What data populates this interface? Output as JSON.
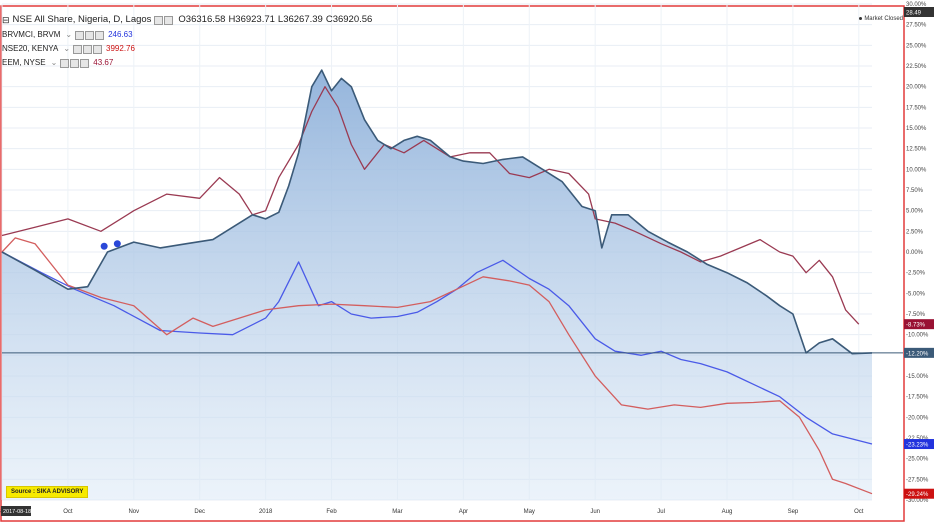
{
  "legend": {
    "main": {
      "name": "NSE All Share, Nigeria, D, Lagos",
      "open": "O36316.58",
      "high": "H36923.71",
      "low": "L36267.39",
      "close": "C36920.56"
    },
    "overlays": [
      {
        "name": "BRVMCI, BRVM",
        "value": "246.63",
        "color": "#2233dd"
      },
      {
        "name": "NSE20, KENYA",
        "value": "3992.76",
        "color": "#cc1111"
      },
      {
        "name": "EEM, NYSE",
        "value": "43.67",
        "color": "#991133"
      }
    ]
  },
  "market_status": "Market Closed",
  "source_label": "Source : SIKA ADVISORY",
  "date_label": "2017-08-18",
  "colors": {
    "main_line": "#3b5a78",
    "main_fill": "#a9c6e6",
    "brvm_line": "#4a5ae8",
    "kenya_line": "#d35e5e",
    "eem_line": "#9a3a52",
    "border": "#e23a3a"
  },
  "chart_data": {
    "type": "line",
    "y_unit": "%",
    "y_range": [
      -30,
      30
    ],
    "y_ticks": [
      "30.00%",
      "27.50%",
      "25.00%",
      "22.50%",
      "20.00%",
      "17.50%",
      "15.00%",
      "12.50%",
      "10.00%",
      "7.50%",
      "5.00%",
      "2.50%",
      "0.00%",
      "-2.50%",
      "-5.00%",
      "-7.50%",
      "-10.00%",
      "-12.50%",
      "-15.00%",
      "-17.50%",
      "-20.00%",
      "-22.50%",
      "-25.00%",
      "-27.50%",
      "-30.00%"
    ],
    "x_labels": [
      "Sep",
      "Oct",
      "Nov",
      "Dec",
      "2018",
      "Feb",
      "Mar",
      "Apr",
      "May",
      "Jun",
      "Jul",
      "Aug",
      "Sep",
      "Oct"
    ],
    "current_labels": [
      "28.49",
      "-8.73%",
      "-12.20%",
      "-23.23%",
      "-29.24%"
    ],
    "series": [
      {
        "name": "NSE All Share, Nigeria, D, Lagos",
        "x": [
          0,
          0.5,
          1,
          1.3,
          1.6,
          2,
          2.4,
          2.8,
          3.2,
          3.5,
          3.8,
          4,
          4.2,
          4.35,
          4.5,
          4.6,
          4.7,
          4.85,
          5,
          5.15,
          5.3,
          5.5,
          5.7,
          5.9,
          6.1,
          6.3,
          6.5,
          6.8,
          7,
          7.3,
          7.6,
          7.9,
          8.2,
          8.5,
          8.8,
          9.0,
          9.1,
          9.25,
          9.5,
          9.8,
          10.1,
          10.4,
          10.7,
          11.0,
          11.3,
          11.6,
          11.8,
          12.0,
          12.2,
          12.4,
          12.6,
          12.9,
          13.2
        ],
        "y": [
          0,
          -2.2,
          -4.5,
          -4.2,
          0,
          1.2,
          0.5,
          1.0,
          1.5,
          3,
          4.5,
          4.0,
          4.8,
          8,
          12,
          16,
          20,
          22,
          19.5,
          21,
          20,
          16,
          13.5,
          12.5,
          13.5,
          14,
          13.5,
          11.5,
          11,
          10.7,
          11.2,
          11.5,
          10,
          8.5,
          5.5,
          5,
          0.5,
          4.5,
          4.5,
          2.5,
          1.2,
          0.0,
          -1.5,
          -2.5,
          -3.7,
          -5.3,
          -6.5,
          -7.5,
          -12.2,
          -11,
          -10.5,
          -12.3,
          -12.2
        ]
      },
      {
        "name": "BRVMCI, BRVM",
        "x": [
          0,
          0.6,
          1.1,
          1.7,
          2.4,
          3.0,
          3.5,
          4.0,
          4.2,
          4.5,
          4.8,
          5.0,
          5.3,
          5.6,
          6.0,
          6.3,
          6.6,
          6.9,
          7.2,
          7.6,
          8.0,
          8.3,
          8.6,
          9.0,
          9.3,
          9.7,
          10.0,
          10.3,
          10.6,
          11.0,
          11.4,
          11.8,
          12.2,
          12.6,
          13.2
        ],
        "y": [
          0,
          -2.5,
          -4.5,
          -6.5,
          -9.5,
          -9.8,
          -10.0,
          -8.0,
          -6.0,
          -1.2,
          -6.5,
          -6.0,
          -7.5,
          -8.0,
          -7.8,
          -7.3,
          -6.0,
          -4.5,
          -2.5,
          -1.0,
          -3.2,
          -4.5,
          -6.5,
          -10.5,
          -12.0,
          -12.5,
          -12.0,
          -13.0,
          -13.5,
          -14.5,
          -16.0,
          -17.5,
          -20.0,
          -22.0,
          -23.23
        ]
      },
      {
        "name": "NSE20, KENYA",
        "x": [
          0,
          0.2,
          0.5,
          1.0,
          1.5,
          2.0,
          2.5,
          2.9,
          3.2,
          3.6,
          4.0,
          4.5,
          5.0,
          5.5,
          6.0,
          6.5,
          6.9,
          7.3,
          7.7,
          8.0,
          8.3,
          8.6,
          9.0,
          9.4,
          9.8,
          10.2,
          10.6,
          11.0,
          11.4,
          11.8,
          12.1,
          12.4,
          12.6,
          12.8,
          13.2
        ],
        "y": [
          0,
          1.7,
          1.0,
          -4.0,
          -5.5,
          -6.5,
          -10.0,
          -8.0,
          -9.0,
          -8.0,
          -7.0,
          -6.5,
          -6.3,
          -6.5,
          -6.7,
          -6.0,
          -4.5,
          -3.0,
          -3.5,
          -4.0,
          -6.0,
          -10.0,
          -15.0,
          -18.5,
          -19.0,
          -18.5,
          -18.8,
          -18.3,
          -18.2,
          -18.0,
          -20.0,
          -24.0,
          -27.5,
          -28.0,
          -29.24
        ]
      },
      {
        "name": "EEM, NYSE",
        "x": [
          0,
          0.5,
          1.0,
          1.5,
          2.0,
          2.5,
          3.0,
          3.3,
          3.6,
          3.8,
          4.0,
          4.2,
          4.5,
          4.7,
          4.9,
          5.1,
          5.3,
          5.5,
          5.8,
          6.1,
          6.4,
          6.8,
          7.1,
          7.4,
          7.7,
          8.0,
          8.3,
          8.6,
          8.9,
          9.0,
          9.3,
          9.6,
          10.0,
          10.3,
          10.6,
          10.9,
          11.2,
          11.5,
          11.8,
          12.0,
          12.2,
          12.4,
          12.6,
          12.8,
          13.0
        ],
        "y": [
          2,
          3.0,
          4.0,
          2.5,
          5.0,
          7.0,
          6.5,
          9.0,
          7.0,
          4.5,
          5.0,
          9.0,
          13.0,
          17.0,
          20.0,
          17.5,
          13.0,
          10.0,
          13.0,
          12.0,
          13.5,
          11.5,
          12.0,
          12.0,
          9.5,
          9.0,
          10.0,
          9.5,
          7.0,
          4.0,
          3.5,
          2.5,
          1.0,
          0.0,
          -1.2,
          -0.5,
          0.5,
          1.5,
          0.0,
          -0.5,
          -2.5,
          -1.0,
          -3.0,
          -7.0,
          -8.73
        ]
      }
    ]
  }
}
